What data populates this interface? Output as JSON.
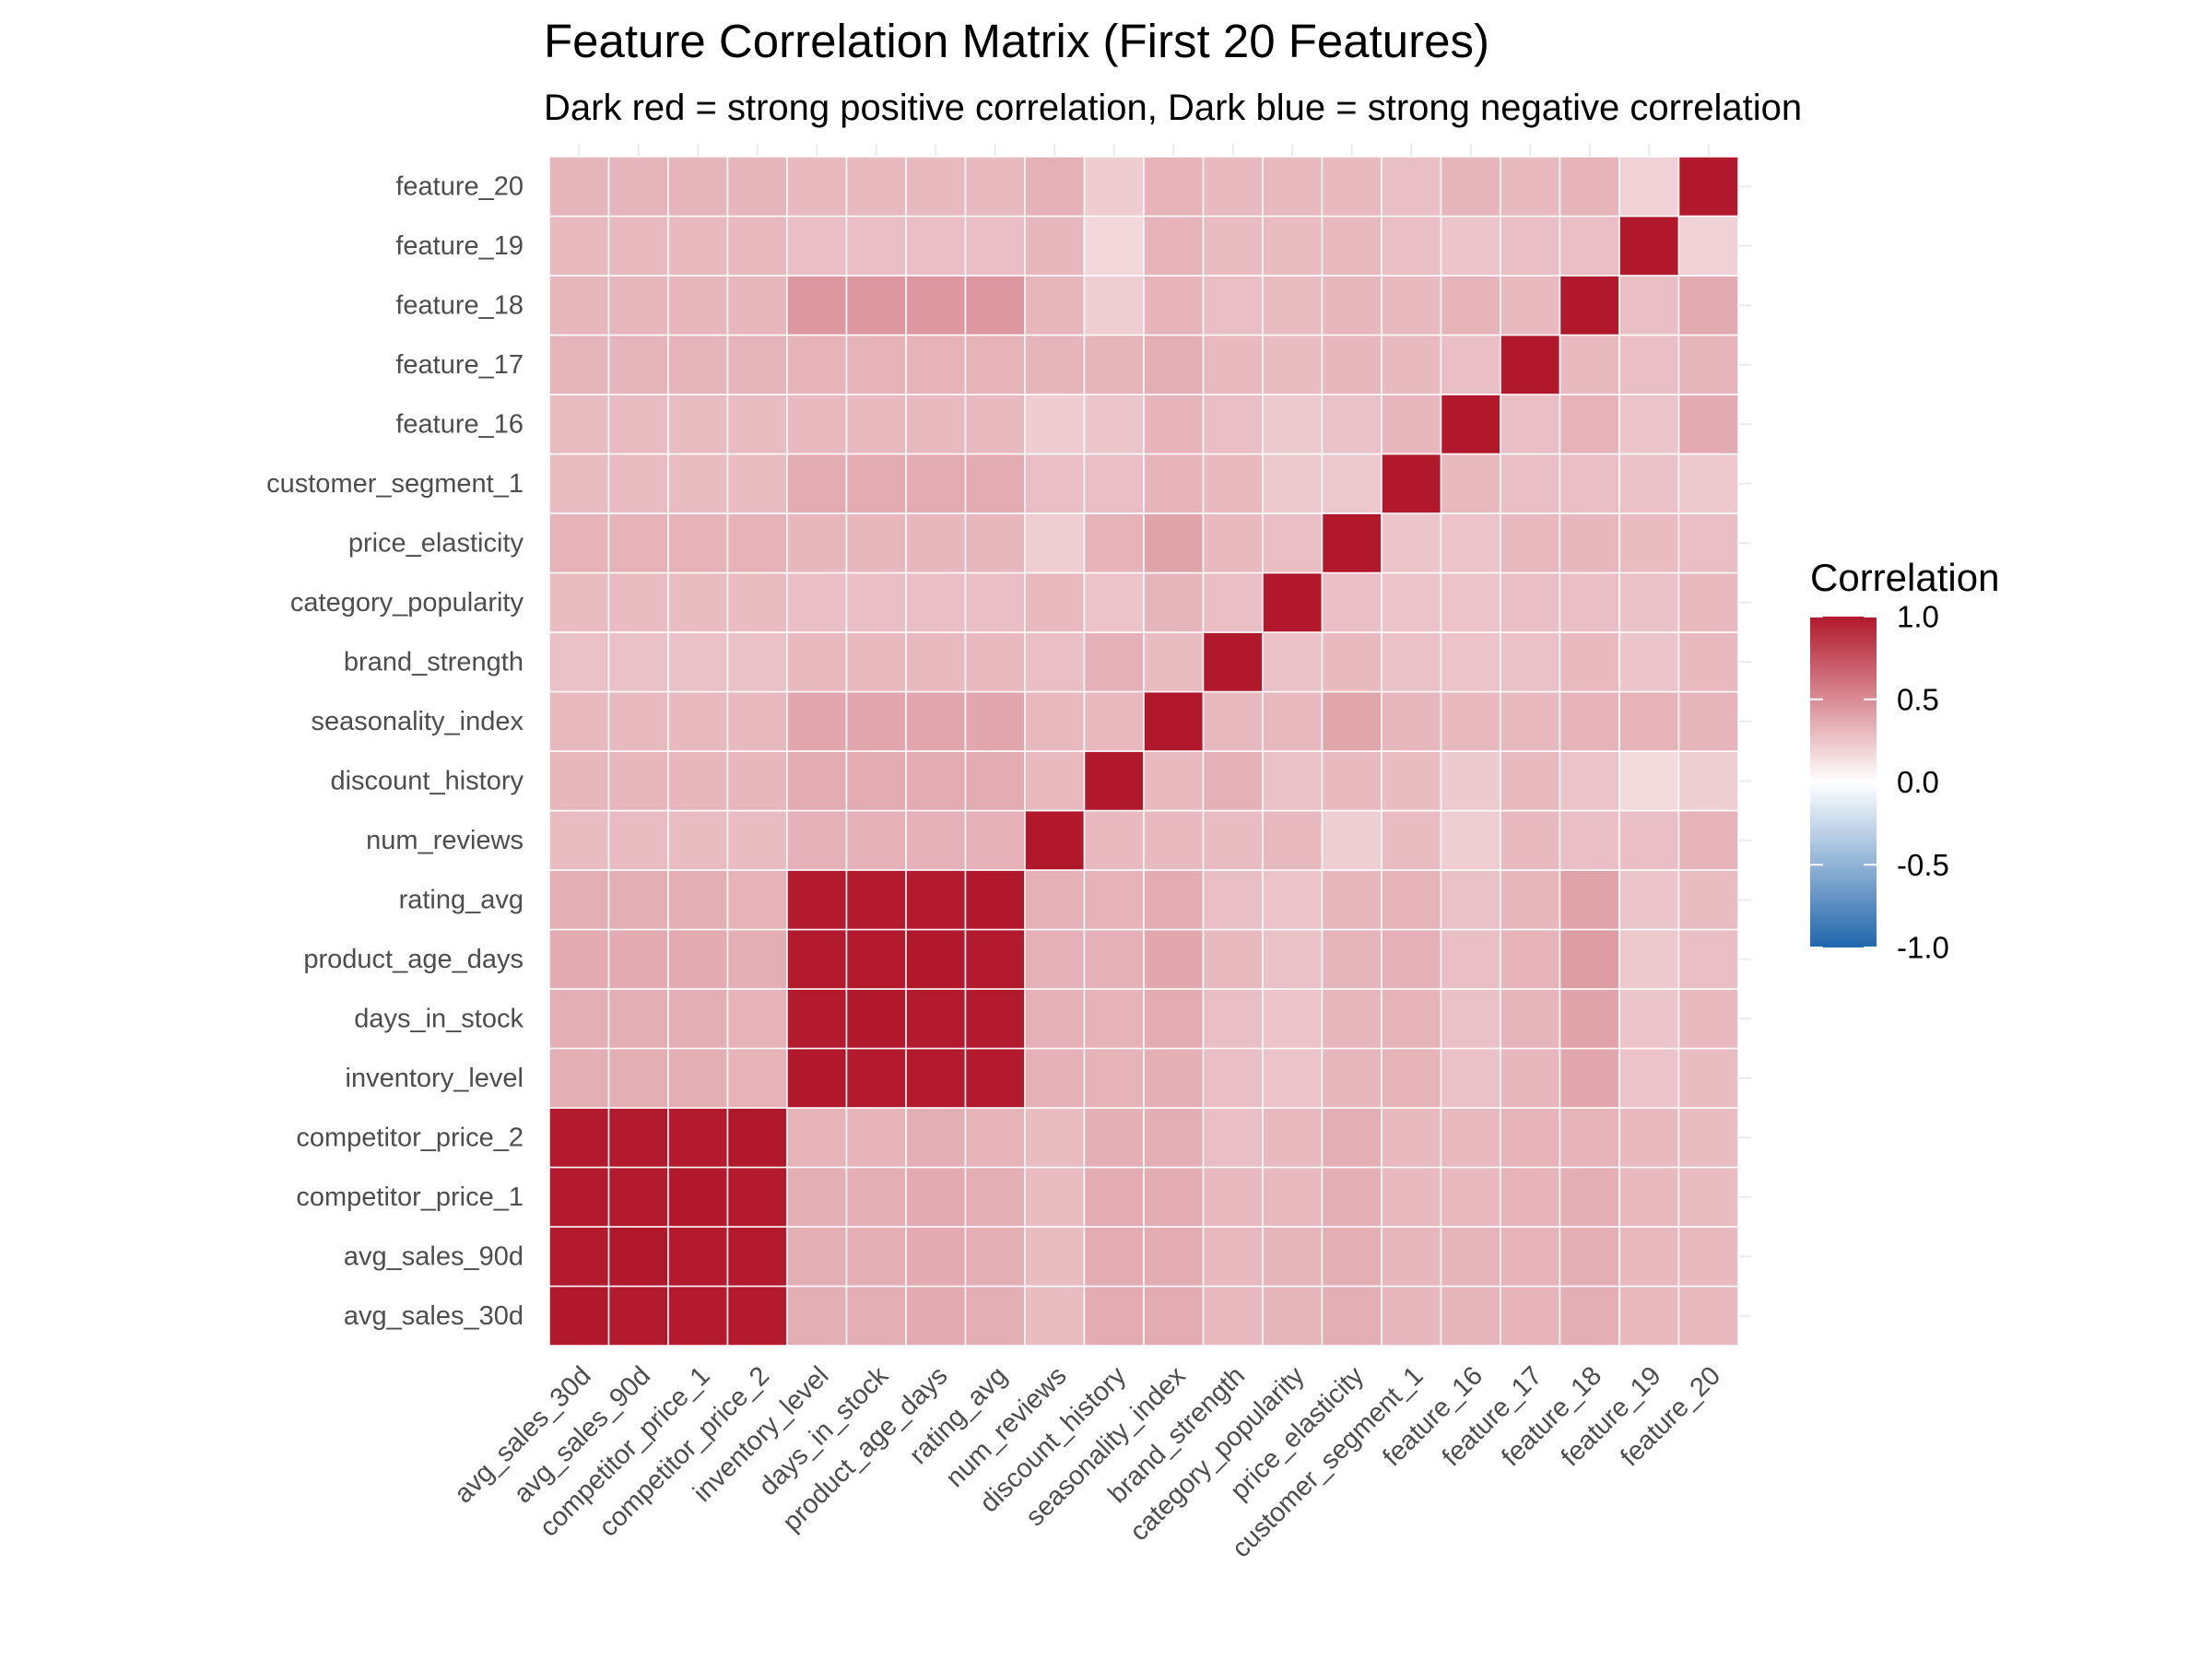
{
  "chart_data": {
    "type": "heatmap",
    "title": "Feature Correlation Matrix (First 20 Features)",
    "subtitle": "Dark red = strong positive correlation, Dark blue = strong negative correlation",
    "xlabel": "",
    "ylabel": "",
    "features": [
      "avg_sales_30d",
      "avg_sales_90d",
      "competitor_price_1",
      "competitor_price_2",
      "inventory_level",
      "days_in_stock",
      "product_age_days",
      "rating_avg",
      "num_reviews",
      "discount_history",
      "seasonality_index",
      "brand_strength",
      "category_popularity",
      "price_elasticity",
      "customer_segment_1",
      "feature_16",
      "feature_17",
      "feature_18",
      "feature_19",
      "feature_20"
    ],
    "matrix": [
      [
        1.0,
        0.99,
        0.99,
        0.99,
        0.35,
        0.35,
        0.37,
        0.35,
        0.29,
        0.31,
        0.3,
        0.27,
        0.29,
        0.33,
        0.29,
        0.29,
        0.32,
        0.31,
        0.3,
        0.32
      ],
      [
        0.99,
        1.0,
        0.99,
        0.99,
        0.35,
        0.35,
        0.37,
        0.35,
        0.29,
        0.31,
        0.3,
        0.27,
        0.29,
        0.33,
        0.29,
        0.29,
        0.32,
        0.31,
        0.3,
        0.32
      ],
      [
        0.99,
        0.99,
        1.0,
        0.99,
        0.35,
        0.35,
        0.37,
        0.35,
        0.29,
        0.31,
        0.3,
        0.27,
        0.29,
        0.33,
        0.29,
        0.29,
        0.32,
        0.31,
        0.3,
        0.32
      ],
      [
        0.99,
        0.99,
        0.99,
        1.0,
        0.33,
        0.33,
        0.35,
        0.33,
        0.29,
        0.31,
        0.3,
        0.27,
        0.29,
        0.33,
        0.29,
        0.29,
        0.32,
        0.31,
        0.3,
        0.32
      ],
      [
        0.35,
        0.35,
        0.35,
        0.33,
        1.0,
        0.99,
        0.99,
        0.99,
        0.34,
        0.36,
        0.38,
        0.3,
        0.28,
        0.31,
        0.36,
        0.3,
        0.33,
        0.45,
        0.28,
        0.3
      ],
      [
        0.35,
        0.35,
        0.35,
        0.33,
        0.99,
        1.0,
        0.99,
        0.99,
        0.34,
        0.36,
        0.38,
        0.3,
        0.28,
        0.31,
        0.36,
        0.3,
        0.33,
        0.45,
        0.28,
        0.3
      ],
      [
        0.37,
        0.37,
        0.37,
        0.35,
        0.99,
        0.99,
        1.0,
        0.99,
        0.34,
        0.36,
        0.38,
        0.3,
        0.28,
        0.31,
        0.36,
        0.3,
        0.33,
        0.45,
        0.28,
        0.3
      ],
      [
        0.35,
        0.35,
        0.35,
        0.33,
        0.99,
        0.99,
        0.99,
        1.0,
        0.34,
        0.36,
        0.38,
        0.3,
        0.28,
        0.31,
        0.36,
        0.3,
        0.33,
        0.45,
        0.28,
        0.3
      ],
      [
        0.29,
        0.29,
        0.29,
        0.29,
        0.34,
        0.34,
        0.34,
        0.34,
        1.0,
        0.3,
        0.3,
        0.28,
        0.3,
        0.21,
        0.28,
        0.22,
        0.32,
        0.31,
        0.31,
        0.34
      ],
      [
        0.36,
        0.36,
        0.36,
        0.35,
        0.33,
        0.33,
        0.34,
        0.33,
        0.3,
        1.0,
        0.3,
        0.34,
        0.26,
        0.33,
        0.28,
        0.25,
        0.32,
        0.21,
        0.17,
        0.22
      ],
      [
        0.36,
        0.36,
        0.36,
        0.35,
        0.35,
        0.36,
        0.38,
        0.36,
        0.3,
        0.3,
        1.0,
        0.29,
        0.32,
        0.4,
        0.33,
        0.33,
        0.35,
        0.33,
        0.33,
        0.33
      ],
      [
        0.3,
        0.3,
        0.3,
        0.28,
        0.28,
        0.28,
        0.3,
        0.28,
        0.29,
        0.34,
        0.3,
        1.0,
        0.28,
        0.3,
        0.3,
        0.28,
        0.3,
        0.28,
        0.29,
        0.3
      ],
      [
        0.32,
        0.32,
        0.3,
        0.3,
        0.26,
        0.26,
        0.27,
        0.26,
        0.3,
        0.27,
        0.3,
        0.27,
        1.0,
        0.28,
        0.24,
        0.24,
        0.29,
        0.29,
        0.29,
        0.3
      ],
      [
        0.35,
        0.35,
        0.35,
        0.35,
        0.31,
        0.31,
        0.32,
        0.31,
        0.21,
        0.3,
        0.39,
        0.3,
        0.28,
        1.0,
        0.24,
        0.27,
        0.31,
        0.31,
        0.3,
        0.3
      ],
      [
        0.31,
        0.31,
        0.3,
        0.3,
        0.33,
        0.33,
        0.34,
        0.33,
        0.29,
        0.29,
        0.31,
        0.27,
        0.26,
        0.25,
        1.0,
        0.31,
        0.3,
        0.3,
        0.28,
        0.28
      ],
      [
        0.32,
        0.32,
        0.3,
        0.3,
        0.27,
        0.27,
        0.28,
        0.27,
        0.21,
        0.23,
        0.3,
        0.26,
        0.26,
        0.26,
        0.3,
        1.0,
        0.28,
        0.33,
        0.25,
        0.32
      ],
      [
        0.33,
        0.33,
        0.33,
        0.33,
        0.31,
        0.32,
        0.33,
        0.31,
        0.3,
        0.3,
        0.3,
        0.27,
        0.28,
        0.3,
        0.28,
        0.28,
        1.0,
        0.3,
        0.28,
        0.3
      ],
      [
        0.35,
        0.35,
        0.35,
        0.33,
        0.38,
        0.4,
        0.43,
        0.4,
        0.28,
        0.26,
        0.33,
        0.3,
        0.28,
        0.31,
        0.28,
        0.33,
        0.3,
        1.0,
        0.28,
        0.33
      ],
      [
        0.3,
        0.3,
        0.3,
        0.3,
        0.26,
        0.25,
        0.24,
        0.25,
        0.28,
        0.16,
        0.33,
        0.25,
        0.27,
        0.29,
        0.27,
        0.25,
        0.28,
        0.28,
        1.0,
        0.2
      ],
      [
        0.3,
        0.3,
        0.29,
        0.29,
        0.29,
        0.3,
        0.28,
        0.29,
        0.33,
        0.21,
        0.32,
        0.3,
        0.3,
        0.28,
        0.24,
        0.37,
        0.32,
        0.37,
        0.2,
        1.0
      ]
    ],
    "scale": {
      "min": -1.0,
      "max": 1.0,
      "low_color": "#2166AC",
      "mid_color": "#FFFFFF",
      "high_color": "#B2182B"
    },
    "legend": {
      "title": "Correlation",
      "ticks": [
        "1.0",
        "0.5",
        "0.0",
        "-0.5",
        "-1.0"
      ],
      "tick_values": [
        1.0,
        0.5,
        0.0,
        -0.5,
        -1.0
      ],
      "position": "right"
    },
    "grid": true
  }
}
